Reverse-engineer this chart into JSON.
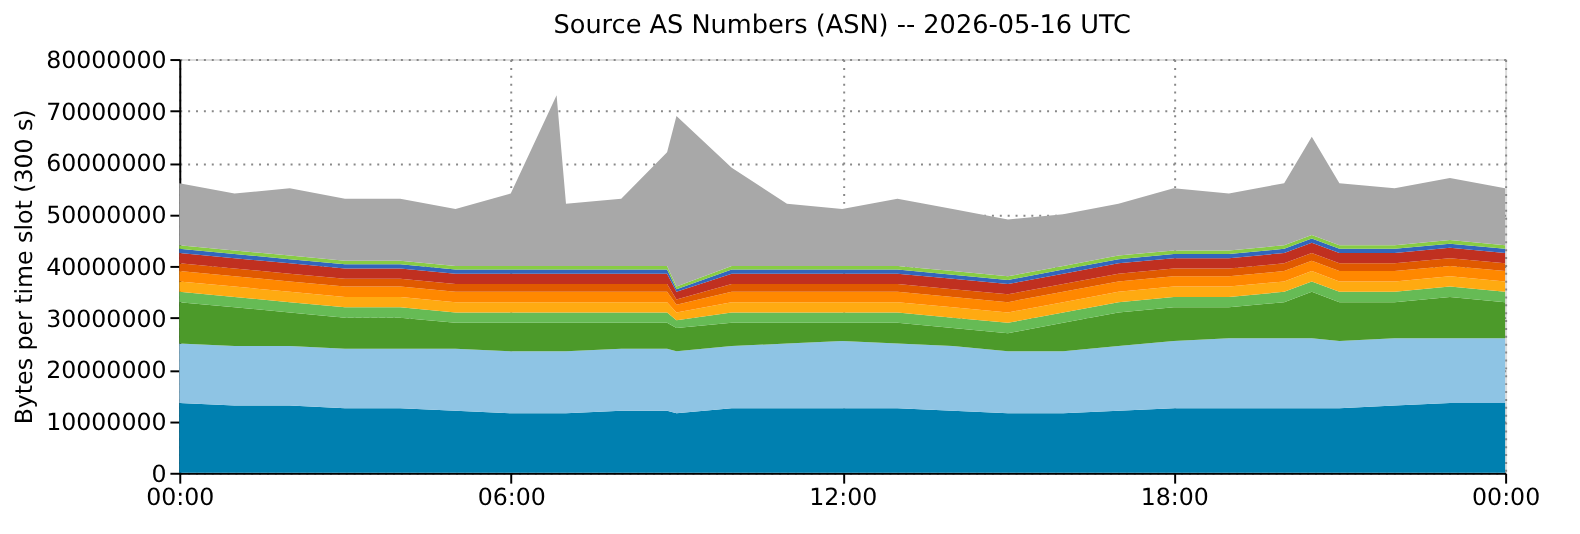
{
  "chart_data": {
    "type": "area",
    "stacked": true,
    "title": "Source AS Numbers (ASN) -- 2026-05-16 UTC",
    "ylabel": "Bytes per time slot (300 s)",
    "x": [
      0,
      1,
      2,
      3,
      4,
      5,
      6,
      6.83,
      7,
      8,
      8.83,
      9,
      10,
      11,
      12,
      13,
      14,
      15,
      16,
      17,
      18,
      19,
      20,
      20.5,
      21,
      22,
      23,
      24
    ],
    "xlim": [
      0,
      24
    ],
    "xticks": [
      {
        "value": 0,
        "label": "00:00"
      },
      {
        "value": 6,
        "label": "06:00"
      },
      {
        "value": 12,
        "label": "12:00"
      },
      {
        "value": 18,
        "label": "18:00"
      },
      {
        "value": 24,
        "label": "00:00"
      }
    ],
    "ylim": [
      0,
      80000000
    ],
    "yticks": [
      0,
      10000000,
      20000000,
      30000000,
      40000000,
      50000000,
      60000000,
      70000000,
      80000000
    ],
    "grid": true,
    "legend": false,
    "series": [
      {
        "color": "#0080b0",
        "values": [
          13500000,
          13000000,
          13000000,
          12500000,
          12500000,
          12000000,
          11500000,
          11500000,
          11500000,
          12000000,
          12000000,
          11500000,
          12500000,
          12500000,
          12500000,
          12500000,
          12000000,
          11500000,
          11500000,
          12000000,
          12500000,
          12500000,
          12500000,
          12500000,
          12500000,
          13000000,
          13500000,
          13500000
        ]
      },
      {
        "color": "#8ec4e4",
        "values": [
          11500000,
          11500000,
          11500000,
          11500000,
          11500000,
          12000000,
          12000000,
          12000000,
          12000000,
          12000000,
          12000000,
          12000000,
          12000000,
          12500000,
          13000000,
          12500000,
          12500000,
          12000000,
          12000000,
          12500000,
          13000000,
          13500000,
          13500000,
          13500000,
          13000000,
          13000000,
          12500000,
          12500000
        ]
      },
      {
        "color": "#4c9a2a",
        "values": [
          8000000,
          7500000,
          6500000,
          6000000,
          6000000,
          5000000,
          5500000,
          5500000,
          5500000,
          5000000,
          5000000,
          4500000,
          4500000,
          4000000,
          3500000,
          4000000,
          3500000,
          3500000,
          5500000,
          6500000,
          6500000,
          6000000,
          7000000,
          9000000,
          7500000,
          7000000,
          8000000,
          7000000
        ]
      },
      {
        "color": "#66bb55",
        "values": [
          2000000,
          2000000,
          2000000,
          2000000,
          2000000,
          2000000,
          2000000,
          2000000,
          2000000,
          2000000,
          2000000,
          1500000,
          2000000,
          2000000,
          2000000,
          2000000,
          2000000,
          2000000,
          2000000,
          2000000,
          2000000,
          2000000,
          2000000,
          2000000,
          2000000,
          2000000,
          2000000,
          2000000
        ]
      },
      {
        "color": "#ffaa11",
        "values": [
          2000000,
          2000000,
          2000000,
          2000000,
          2000000,
          2000000,
          2000000,
          2000000,
          2000000,
          2000000,
          2000000,
          1500000,
          2000000,
          2000000,
          2000000,
          2000000,
          2000000,
          2000000,
          2000000,
          2000000,
          2000000,
          2000000,
          2000000,
          2000000,
          2000000,
          2000000,
          2000000,
          2000000
        ]
      },
      {
        "color": "#ff8800",
        "values": [
          2000000,
          2000000,
          2000000,
          2000000,
          2000000,
          2000000,
          2000000,
          2000000,
          2000000,
          2000000,
          2000000,
          1500000,
          2000000,
          2000000,
          2000000,
          2000000,
          2000000,
          2000000,
          2000000,
          2000000,
          2000000,
          2000000,
          2000000,
          2000000,
          2000000,
          2000000,
          2000000,
          2000000
        ]
      },
      {
        "color": "#e05a00",
        "values": [
          1500000,
          1500000,
          1500000,
          1500000,
          1500000,
          1500000,
          1500000,
          1500000,
          1500000,
          1500000,
          1500000,
          1000000,
          1500000,
          1500000,
          1500000,
          1500000,
          1500000,
          1500000,
          1500000,
          1500000,
          1500000,
          1500000,
          1500000,
          1500000,
          1500000,
          1500000,
          1500000,
          1500000
        ]
      },
      {
        "color": "#c03020",
        "values": [
          2000000,
          2000000,
          2000000,
          2000000,
          2000000,
          2000000,
          2000000,
          2000000,
          2000000,
          2000000,
          2000000,
          1500000,
          2000000,
          2000000,
          2000000,
          2000000,
          2000000,
          2000000,
          2000000,
          2000000,
          2000000,
          2000000,
          2000000,
          2000000,
          2000000,
          2000000,
          2000000,
          2000000
        ]
      },
      {
        "color": "#3366bb",
        "values": [
          800000,
          800000,
          800000,
          800000,
          800000,
          800000,
          800000,
          800000,
          800000,
          800000,
          800000,
          500000,
          800000,
          800000,
          800000,
          800000,
          800000,
          800000,
          800000,
          800000,
          800000,
          800000,
          800000,
          800000,
          800000,
          800000,
          800000,
          800000
        ]
      },
      {
        "color": "#88cc44",
        "values": [
          700000,
          700000,
          700000,
          700000,
          700000,
          700000,
          700000,
          700000,
          700000,
          700000,
          700000,
          500000,
          700000,
          700000,
          700000,
          700000,
          700000,
          700000,
          700000,
          700000,
          700000,
          700000,
          700000,
          700000,
          700000,
          700000,
          700000,
          700000
        ]
      },
      {
        "color": "#a8a8a8",
        "values": [
          12000000,
          11000000,
          13000000,
          12000000,
          12000000,
          11000000,
          14000000,
          33000000,
          12000000,
          13000000,
          22000000,
          33000000,
          19000000,
          12000000,
          11000000,
          13000000,
          12000000,
          11000000,
          10000000,
          10000000,
          12000000,
          11000000,
          12000000,
          19000000,
          12000000,
          11000000,
          12000000,
          11000000
        ]
      }
    ]
  }
}
